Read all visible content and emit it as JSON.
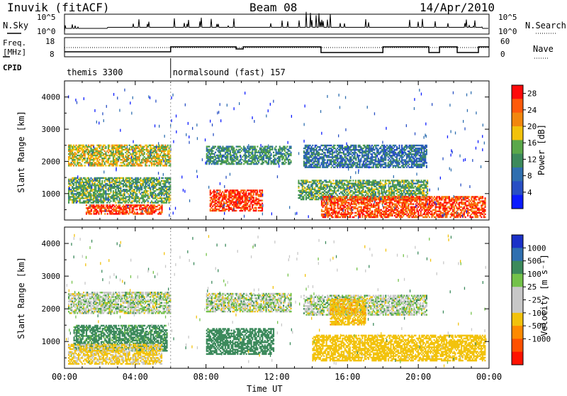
{
  "header": {
    "station": "Inuvik (fitACF)",
    "beam": "Beam 08",
    "date": "14/Apr/2010"
  },
  "labels": {
    "nsky": "N.Sky",
    "nsearch": "N.Search",
    "freq_line1": "Freq.",
    "freq_line2": "[MHz]",
    "nave": "Nave",
    "cpid": "CPID",
    "ylabel": "Slant Range [km]",
    "xlabel": "Time UT",
    "power_label": "Power [dB]",
    "velocity_label": "Velocity [m s⁻¹]",
    "nsky_top": "10^5",
    "nsky_bot": "10^0",
    "nsearch_top": "10^5",
    "nsearch_bot": "10^0",
    "freq_top": "18",
    "freq_bot": "8",
    "nave_top": "60",
    "nave_bot": "0"
  },
  "cpid": [
    {
      "name": "themis 3300",
      "start_hour": 0
    },
    {
      "name": "normalsound (fast) 157",
      "start_hour": 6
    }
  ],
  "colors": {
    "power": [
      "#0b1bff",
      "#284fc4",
      "#2f6fb0",
      "#3c8a5c",
      "#5aa84a",
      "#f2c20c",
      "#f2870e",
      "#ff5a0b",
      "#ff0a0a"
    ],
    "velocity": [
      "#ff1200",
      "#ff5000",
      "#ff8a00",
      "#f2c20c",
      "#c8c8c8",
      "#c8c8c8",
      "#74c24a",
      "#3c8a5c",
      "#2f6fb0",
      "#1b31c8"
    ]
  },
  "chart_data": [
    {
      "type": "heatmap",
      "panel": "power",
      "xlabel": "Time UT",
      "ylabel": "Slant Range [km]",
      "xlim": [
        0,
        24
      ],
      "ylim": [
        180,
        4500
      ],
      "x_ticks": [
        "00:00",
        "04:00",
        "08:00",
        "12:00",
        "16:00",
        "20:00",
        "00:00"
      ],
      "y_ticks": [
        1000,
        2000,
        3000,
        4000
      ],
      "colorbar": {
        "label": "Power [dB]",
        "ticks": [
          4,
          8,
          12,
          16,
          20,
          24,
          28
        ],
        "range": [
          0,
          30
        ]
      },
      "echo_bands": [
        {
          "t": [
            0.2,
            6.0
          ],
          "range_km": [
            1850,
            2500
          ],
          "power_db": 18
        },
        {
          "t": [
            0.2,
            6.0
          ],
          "range_km": [
            700,
            1500
          ],
          "power_db": 14
        },
        {
          "t": [
            1.2,
            5.5
          ],
          "range_km": [
            350,
            650
          ],
          "power_db": 27
        },
        {
          "t": [
            8.0,
            12.8
          ],
          "range_km": [
            1900,
            2450
          ],
          "power_db": 12
        },
        {
          "t": [
            8.2,
            11.2
          ],
          "range_km": [
            450,
            1100
          ],
          "power_db": 27
        },
        {
          "t": [
            13.5,
            20.5
          ],
          "range_km": [
            1800,
            2500
          ],
          "power_db": 9
        },
        {
          "t": [
            13.2,
            20.5
          ],
          "range_km": [
            800,
            1400
          ],
          "power_db": 14
        },
        {
          "t": [
            14.5,
            23.8
          ],
          "range_km": [
            250,
            900
          ],
          "power_db": 26
        }
      ]
    },
    {
      "type": "heatmap",
      "panel": "velocity",
      "xlabel": "Time UT",
      "ylabel": "Slant Range [km]",
      "xlim": [
        0,
        24
      ],
      "ylim": [
        180,
        4500
      ],
      "x_ticks": [
        "00:00",
        "04:00",
        "08:00",
        "12:00",
        "16:00",
        "20:00",
        "00:00"
      ],
      "y_ticks": [
        1000,
        2000,
        3000,
        4000
      ],
      "colorbar": {
        "label": "Velocity [m s⁻¹]",
        "ticks": [
          1000,
          500,
          100,
          25,
          -25,
          -100,
          -500,
          -1000
        ]
      },
      "echo_bands": [
        {
          "t": [
            0.2,
            6.0
          ],
          "range_km": [
            1850,
            2500
          ],
          "velocity": 0
        },
        {
          "t": [
            0.5,
            5.8
          ],
          "range_km": [
            700,
            1500
          ],
          "velocity": 200
        },
        {
          "t": [
            0.2,
            5.5
          ],
          "range_km": [
            300,
            900
          ],
          "velocity": -150
        },
        {
          "t": [
            8.0,
            12.8
          ],
          "range_km": [
            1900,
            2450
          ],
          "velocity": 0
        },
        {
          "t": [
            8.0,
            11.8
          ],
          "range_km": [
            600,
            1400
          ],
          "velocity": 250
        },
        {
          "t": [
            13.5,
            20.5
          ],
          "range_km": [
            1800,
            2400
          ],
          "velocity": 0
        },
        {
          "t": [
            15.0,
            17.0
          ],
          "range_km": [
            1500,
            2300
          ],
          "velocity": -400
        },
        {
          "t": [
            14.0,
            23.8
          ],
          "range_km": [
            400,
            1200
          ],
          "velocity": -250
        }
      ]
    }
  ]
}
